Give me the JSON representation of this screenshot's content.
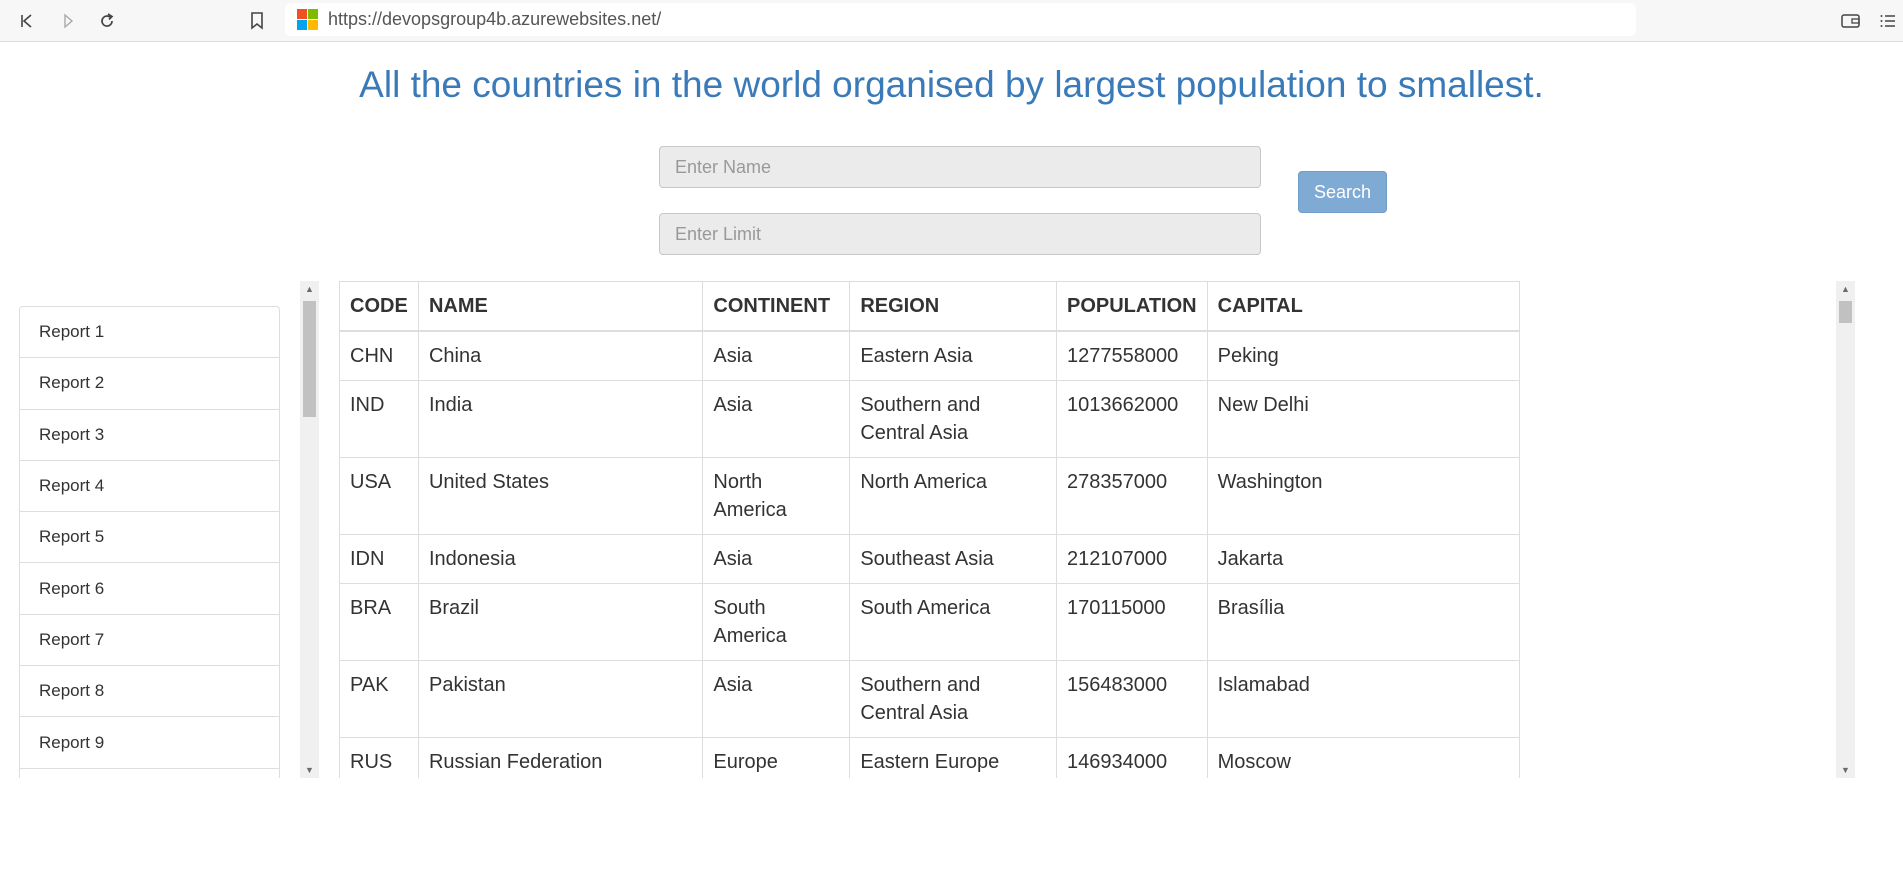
{
  "browser": {
    "url": "https://devopsgroup4b.azurewebsites.net/",
    "logo_colors": [
      "#f25022",
      "#7fba00",
      "#00a4ef",
      "#ffb900"
    ]
  },
  "page": {
    "heading": "All the countries in the world organised by largest population to smallest.",
    "accent_color": "#3a7ab8"
  },
  "form": {
    "name_placeholder": "Enter Name",
    "limit_placeholder": "Enter Limit",
    "search_label": "Search"
  },
  "sidebar": {
    "items": [
      {
        "label": "Report 1"
      },
      {
        "label": "Report 2"
      },
      {
        "label": "Report 3"
      },
      {
        "label": "Report 4"
      },
      {
        "label": "Report 5"
      },
      {
        "label": "Report 6"
      },
      {
        "label": "Report 7"
      },
      {
        "label": "Report 8"
      },
      {
        "label": "Report 9"
      }
    ]
  },
  "table": {
    "headers": [
      "CODE",
      "NAME",
      "CONTINENT",
      "REGION",
      "POPULATION",
      "CAPITAL"
    ],
    "rows": [
      [
        "CHN",
        "China",
        "Asia",
        "Eastern Asia",
        "1277558000",
        "Peking"
      ],
      [
        "IND",
        "India",
        "Asia",
        "Southern and Central Asia",
        "1013662000",
        "New Delhi"
      ],
      [
        "USA",
        "United States",
        "North America",
        "North America",
        "278357000",
        "Washington"
      ],
      [
        "IDN",
        "Indonesia",
        "Asia",
        "Southeast Asia",
        "212107000",
        "Jakarta"
      ],
      [
        "BRA",
        "Brazil",
        "South America",
        "South America",
        "170115000",
        "Brasília"
      ],
      [
        "PAK",
        "Pakistan",
        "Asia",
        "Southern and Central Asia",
        "156483000",
        "Islamabad"
      ],
      [
        "RUS",
        "Russian Federation",
        "Europe",
        "Eastern Europe",
        "146934000",
        "Moscow"
      ]
    ]
  }
}
